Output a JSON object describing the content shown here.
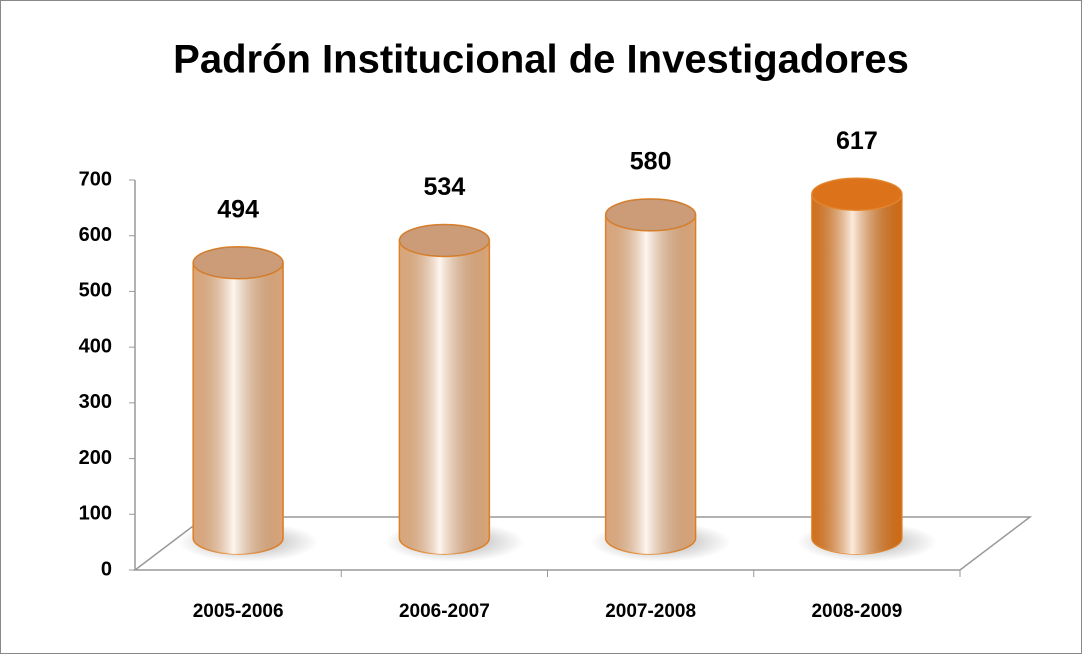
{
  "chart_data": {
    "type": "bar",
    "title": "Padrón Institucional de Investigadores",
    "categories": [
      "2005-2006",
      "2006-2007",
      "2007-2008",
      "2008-2009"
    ],
    "values": [
      494,
      534,
      580,
      617
    ],
    "colors": [
      "#f6c196",
      "#f6c196",
      "#f6c196",
      "#e87716"
    ],
    "ylim": [
      0,
      700
    ],
    "yticks": [
      0,
      100,
      200,
      300,
      400,
      500,
      600,
      700
    ]
  }
}
